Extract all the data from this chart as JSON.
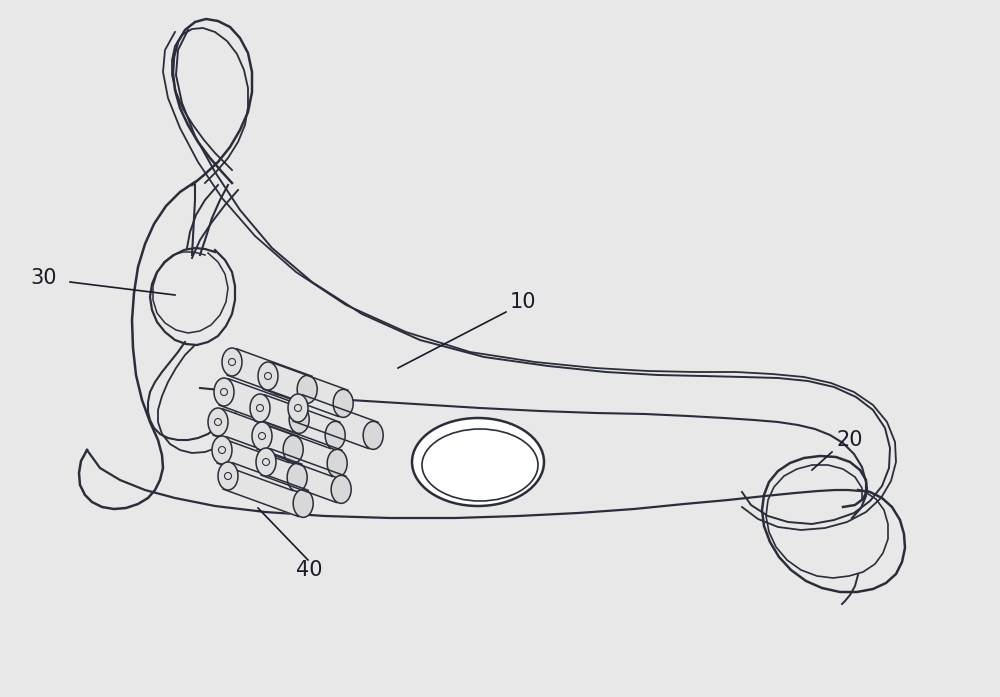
{
  "bg_color": "#e8e8e8",
  "line_color": "#2a2d3a",
  "lw_main": 1.8,
  "lw_thin": 1.2,
  "lw_inner": 1.0,
  "label_10": "10",
  "label_20": "20",
  "label_30": "30",
  "label_40": "40",
  "label_fontsize": 15,
  "label_color": "#1a1a2a",
  "fig_width": 10.0,
  "fig_height": 6.97
}
